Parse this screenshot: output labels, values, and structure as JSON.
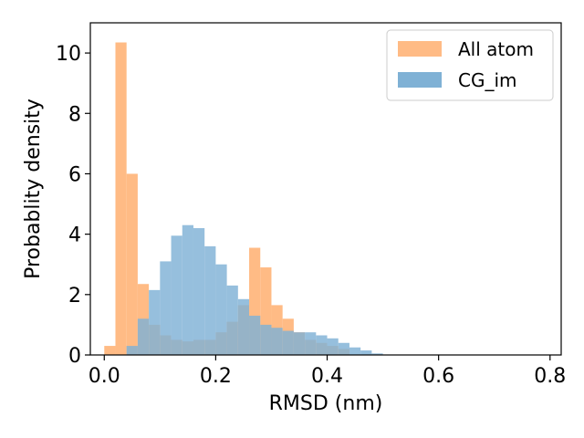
{
  "chart_data": {
    "type": "bar",
    "xlabel": "RMSD (nm)",
    "ylabel": "Probablity density",
    "xlim": [
      -0.025,
      0.82
    ],
    "ylim": [
      0,
      11.0
    ],
    "xticks": [
      0.0,
      0.2,
      0.4,
      0.6,
      0.8
    ],
    "xtick_labels": [
      "0.0",
      "0.2",
      "0.4",
      "0.6",
      "0.8"
    ],
    "yticks": [
      0,
      2,
      4,
      6,
      8,
      10
    ],
    "ytick_labels": [
      "0",
      "2",
      "4",
      "6",
      "8",
      "10"
    ],
    "legend_position": "top-right",
    "grid": false,
    "series": [
      {
        "name": "All atom",
        "color": "#ffbb85",
        "bins": [
          [
            0.0,
            0.02,
            0.3
          ],
          [
            0.02,
            0.04,
            10.35
          ],
          [
            0.04,
            0.06,
            6.0
          ],
          [
            0.06,
            0.08,
            2.35
          ],
          [
            0.08,
            0.1,
            1.0
          ],
          [
            0.1,
            0.12,
            0.65
          ],
          [
            0.12,
            0.14,
            0.5
          ],
          [
            0.14,
            0.16,
            0.45
          ],
          [
            0.16,
            0.18,
            0.5
          ],
          [
            0.18,
            0.2,
            0.5
          ],
          [
            0.2,
            0.22,
            0.75
          ],
          [
            0.22,
            0.24,
            1.1
          ],
          [
            0.24,
            0.26,
            1.65
          ],
          [
            0.26,
            0.28,
            3.55
          ],
          [
            0.28,
            0.3,
            2.9
          ],
          [
            0.3,
            0.32,
            1.65
          ],
          [
            0.32,
            0.34,
            1.2
          ],
          [
            0.34,
            0.36,
            0.75
          ],
          [
            0.36,
            0.38,
            0.5
          ],
          [
            0.38,
            0.4,
            0.4
          ],
          [
            0.4,
            0.42,
            0.3
          ],
          [
            0.42,
            0.44,
            0.2
          ]
        ]
      },
      {
        "name": "CG_im",
        "color": "#7fb1d5",
        "bins": [
          [
            0.04,
            0.06,
            0.3
          ],
          [
            0.06,
            0.08,
            1.2
          ],
          [
            0.08,
            0.1,
            2.15
          ],
          [
            0.1,
            0.12,
            3.1
          ],
          [
            0.12,
            0.14,
            3.95
          ],
          [
            0.14,
            0.16,
            4.3
          ],
          [
            0.16,
            0.18,
            4.2
          ],
          [
            0.18,
            0.2,
            3.6
          ],
          [
            0.2,
            0.22,
            3.0
          ],
          [
            0.22,
            0.24,
            2.3
          ],
          [
            0.24,
            0.26,
            1.85
          ],
          [
            0.26,
            0.28,
            1.3
          ],
          [
            0.28,
            0.3,
            1.0
          ],
          [
            0.3,
            0.32,
            0.9
          ],
          [
            0.32,
            0.34,
            0.8
          ],
          [
            0.34,
            0.36,
            0.75
          ],
          [
            0.36,
            0.38,
            0.75
          ],
          [
            0.38,
            0.4,
            0.65
          ],
          [
            0.4,
            0.42,
            0.55
          ],
          [
            0.42,
            0.44,
            0.4
          ],
          [
            0.44,
            0.46,
            0.25
          ],
          [
            0.46,
            0.48,
            0.15
          ],
          [
            0.48,
            0.5,
            0.05
          ]
        ]
      }
    ]
  }
}
